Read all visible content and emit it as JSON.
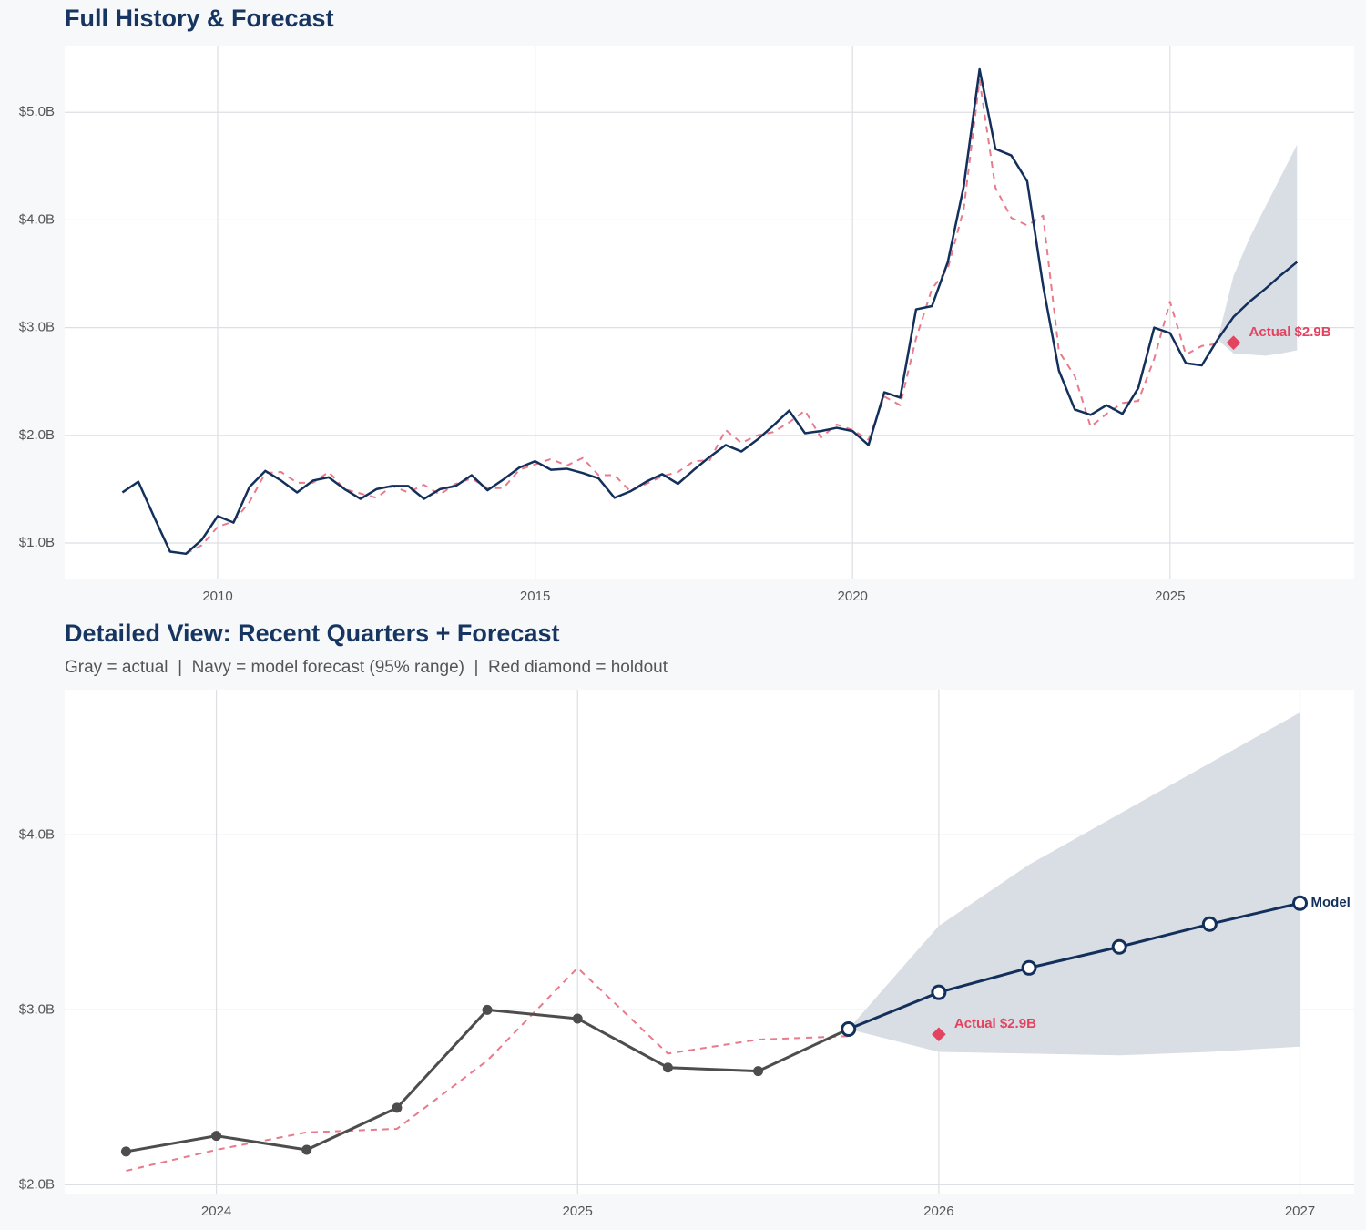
{
  "chart_data": [
    {
      "type": "line",
      "title": "Full History & Forecast",
      "x": [
        2008.5,
        2008.75,
        2009,
        2009.25,
        2009.5,
        2009.75,
        2010,
        2010.25,
        2010.5,
        2010.75,
        2011,
        2011.25,
        2011.5,
        2011.75,
        2012,
        2012.25,
        2012.5,
        2012.75,
        2013,
        2013.25,
        2013.5,
        2013.75,
        2014,
        2014.25,
        2014.5,
        2014.75,
        2015,
        2015.25,
        2015.5,
        2015.75,
        2016,
        2016.25,
        2016.5,
        2016.75,
        2017,
        2017.25,
        2017.5,
        2017.75,
        2018,
        2018.25,
        2018.5,
        2018.75,
        2019,
        2019.25,
        2019.5,
        2019.75,
        2020,
        2020.25,
        2020.5,
        2020.75,
        2021,
        2021.25,
        2021.5,
        2021.75,
        2022,
        2022.25,
        2022.5,
        2022.75,
        2023,
        2023.25,
        2023.5,
        2023.75,
        2024,
        2024.25,
        2024.5,
        2024.75,
        2025,
        2025.25,
        2025.5,
        2025.75
      ],
      "series": [
        {
          "color": "#e87a8c",
          "dashed": true,
          "values": [
            null,
            null,
            null,
            null,
            0.9,
            0.98,
            1.15,
            1.2,
            1.38,
            1.65,
            1.66,
            1.56,
            1.56,
            1.66,
            1.5,
            1.46,
            1.42,
            1.53,
            1.47,
            1.54,
            1.45,
            1.55,
            1.6,
            1.51,
            1.51,
            1.68,
            1.73,
            1.78,
            1.72,
            1.79,
            1.63,
            1.63,
            1.48,
            1.55,
            1.62,
            1.66,
            1.76,
            1.77,
            2.05,
            1.93,
            2.0,
            2.03,
            2.12,
            2.23,
            1.98,
            2.1,
            2.05,
            1.96,
            2.36,
            2.28,
            2.9,
            3.36,
            3.55,
            4.1,
            5.3,
            4.3,
            4.02,
            3.95,
            4.04,
            2.78,
            2.55,
            2.08,
            2.2,
            2.3,
            2.32,
            2.71,
            3.24,
            2.75,
            2.83,
            2.85
          ]
        },
        {
          "color": "#12305b",
          "values": [
            1.47,
            1.57,
            1.24,
            0.92,
            0.9,
            1.03,
            1.25,
            1.19,
            1.52,
            1.67,
            1.58,
            1.47,
            1.58,
            1.61,
            1.5,
            1.41,
            1.5,
            1.53,
            1.53,
            1.41,
            1.5,
            1.53,
            1.63,
            1.49,
            1.59,
            1.7,
            1.76,
            1.68,
            1.69,
            1.65,
            1.6,
            1.42,
            1.48,
            1.57,
            1.64,
            1.55,
            1.68,
            1.8,
            1.91,
            1.85,
            1.96,
            2.09,
            2.23,
            2.02,
            2.04,
            2.07,
            2.04,
            1.91,
            2.4,
            2.35,
            3.17,
            3.2,
            3.61,
            4.31,
            5.4,
            4.66,
            4.6,
            4.36,
            3.39,
            2.6,
            2.24,
            2.19,
            2.28,
            2.2,
            2.44,
            3.0,
            2.95,
            2.67,
            2.65,
            2.89
          ]
        },
        {
          "color": "#12305b",
          "x": [
            2025.75,
            2026,
            2026.25,
            2026.5,
            2026.75,
            2027
          ],
          "values": [
            2.89,
            3.1,
            3.24,
            3.36,
            3.49,
            3.61
          ]
        }
      ],
      "band": {
        "color": "#d9dde4",
        "x": [
          2025.75,
          2026,
          2026.25,
          2026.5,
          2026.75,
          2027
        ],
        "lower": [
          2.89,
          2.76,
          2.75,
          2.74,
          2.76,
          2.79
        ],
        "upper": [
          2.89,
          3.48,
          3.83,
          4.12,
          4.41,
          4.7
        ]
      },
      "annotations": [
        {
          "text": "Actual $2.9B",
          "x": 2026,
          "y": 2.86,
          "color": "#e3435f"
        }
      ],
      "xlim": [
        2007.59,
        2027.9
      ],
      "xticks": [
        2010,
        2015,
        2020,
        2025
      ],
      "ylim": [
        0.67,
        5.62
      ],
      "yticks": [
        {
          "value": 1,
          "label": "$1.0B"
        },
        {
          "value": 2,
          "label": "$2.0B"
        },
        {
          "value": 3,
          "label": "$3.0B"
        },
        {
          "value": 4,
          "label": "$4.0B"
        },
        {
          "value": 5,
          "label": "$5.0B"
        }
      ],
      "grid": true
    },
    {
      "type": "line",
      "title": "Detailed View: Recent Quarters + Forecast",
      "subtitle": "Gray = actual  |  Navy = model forecast (95% range)  |  Red diamond = holdout",
      "x": [
        2023.75,
        2024,
        2024.25,
        2024.5,
        2024.75,
        2025,
        2025.25,
        2025.5,
        2025.75
      ],
      "series": [
        {
          "color": "#e87a8c",
          "dashed": true,
          "values": [
            2.08,
            2.2,
            2.3,
            2.32,
            2.71,
            3.24,
            2.75,
            2.83,
            2.85
          ]
        },
        {
          "color": "#12305b",
          "name": "Model",
          "marker": "hollow",
          "x": [
            2025.75,
            2026,
            2026.25,
            2026.5,
            2026.75,
            2027
          ],
          "values": [
            2.89,
            3.1,
            3.24,
            3.36,
            3.49,
            3.61
          ]
        },
        {
          "color": "#4d4d4d",
          "marker": "filled",
          "values": [
            2.19,
            2.28,
            2.2,
            2.44,
            3.0,
            2.95,
            2.67,
            2.65,
            2.89
          ]
        }
      ],
      "band": {
        "color": "#d9dde4",
        "x": [
          2025.75,
          2026,
          2026.25,
          2026.5,
          2026.75,
          2027
        ],
        "lower": [
          2.89,
          2.76,
          2.75,
          2.74,
          2.76,
          2.79
        ],
        "upper": [
          2.89,
          3.48,
          3.83,
          4.12,
          4.41,
          4.7
        ]
      },
      "annotations": [
        {
          "text": "Actual $2.9B",
          "x": 2026,
          "y": 2.86,
          "color": "#e3435f"
        }
      ],
      "xlim": [
        2023.58,
        2027.15
      ],
      "xticks": [
        2024,
        2025,
        2026,
        2027
      ],
      "ylim": [
        1.95,
        4.83
      ],
      "yticks": [
        {
          "value": 2,
          "label": "$2.0B"
        },
        {
          "value": 3,
          "label": "$3.0B"
        },
        {
          "value": 4,
          "label": "$4.0B"
        }
      ],
      "grid": true
    }
  ]
}
